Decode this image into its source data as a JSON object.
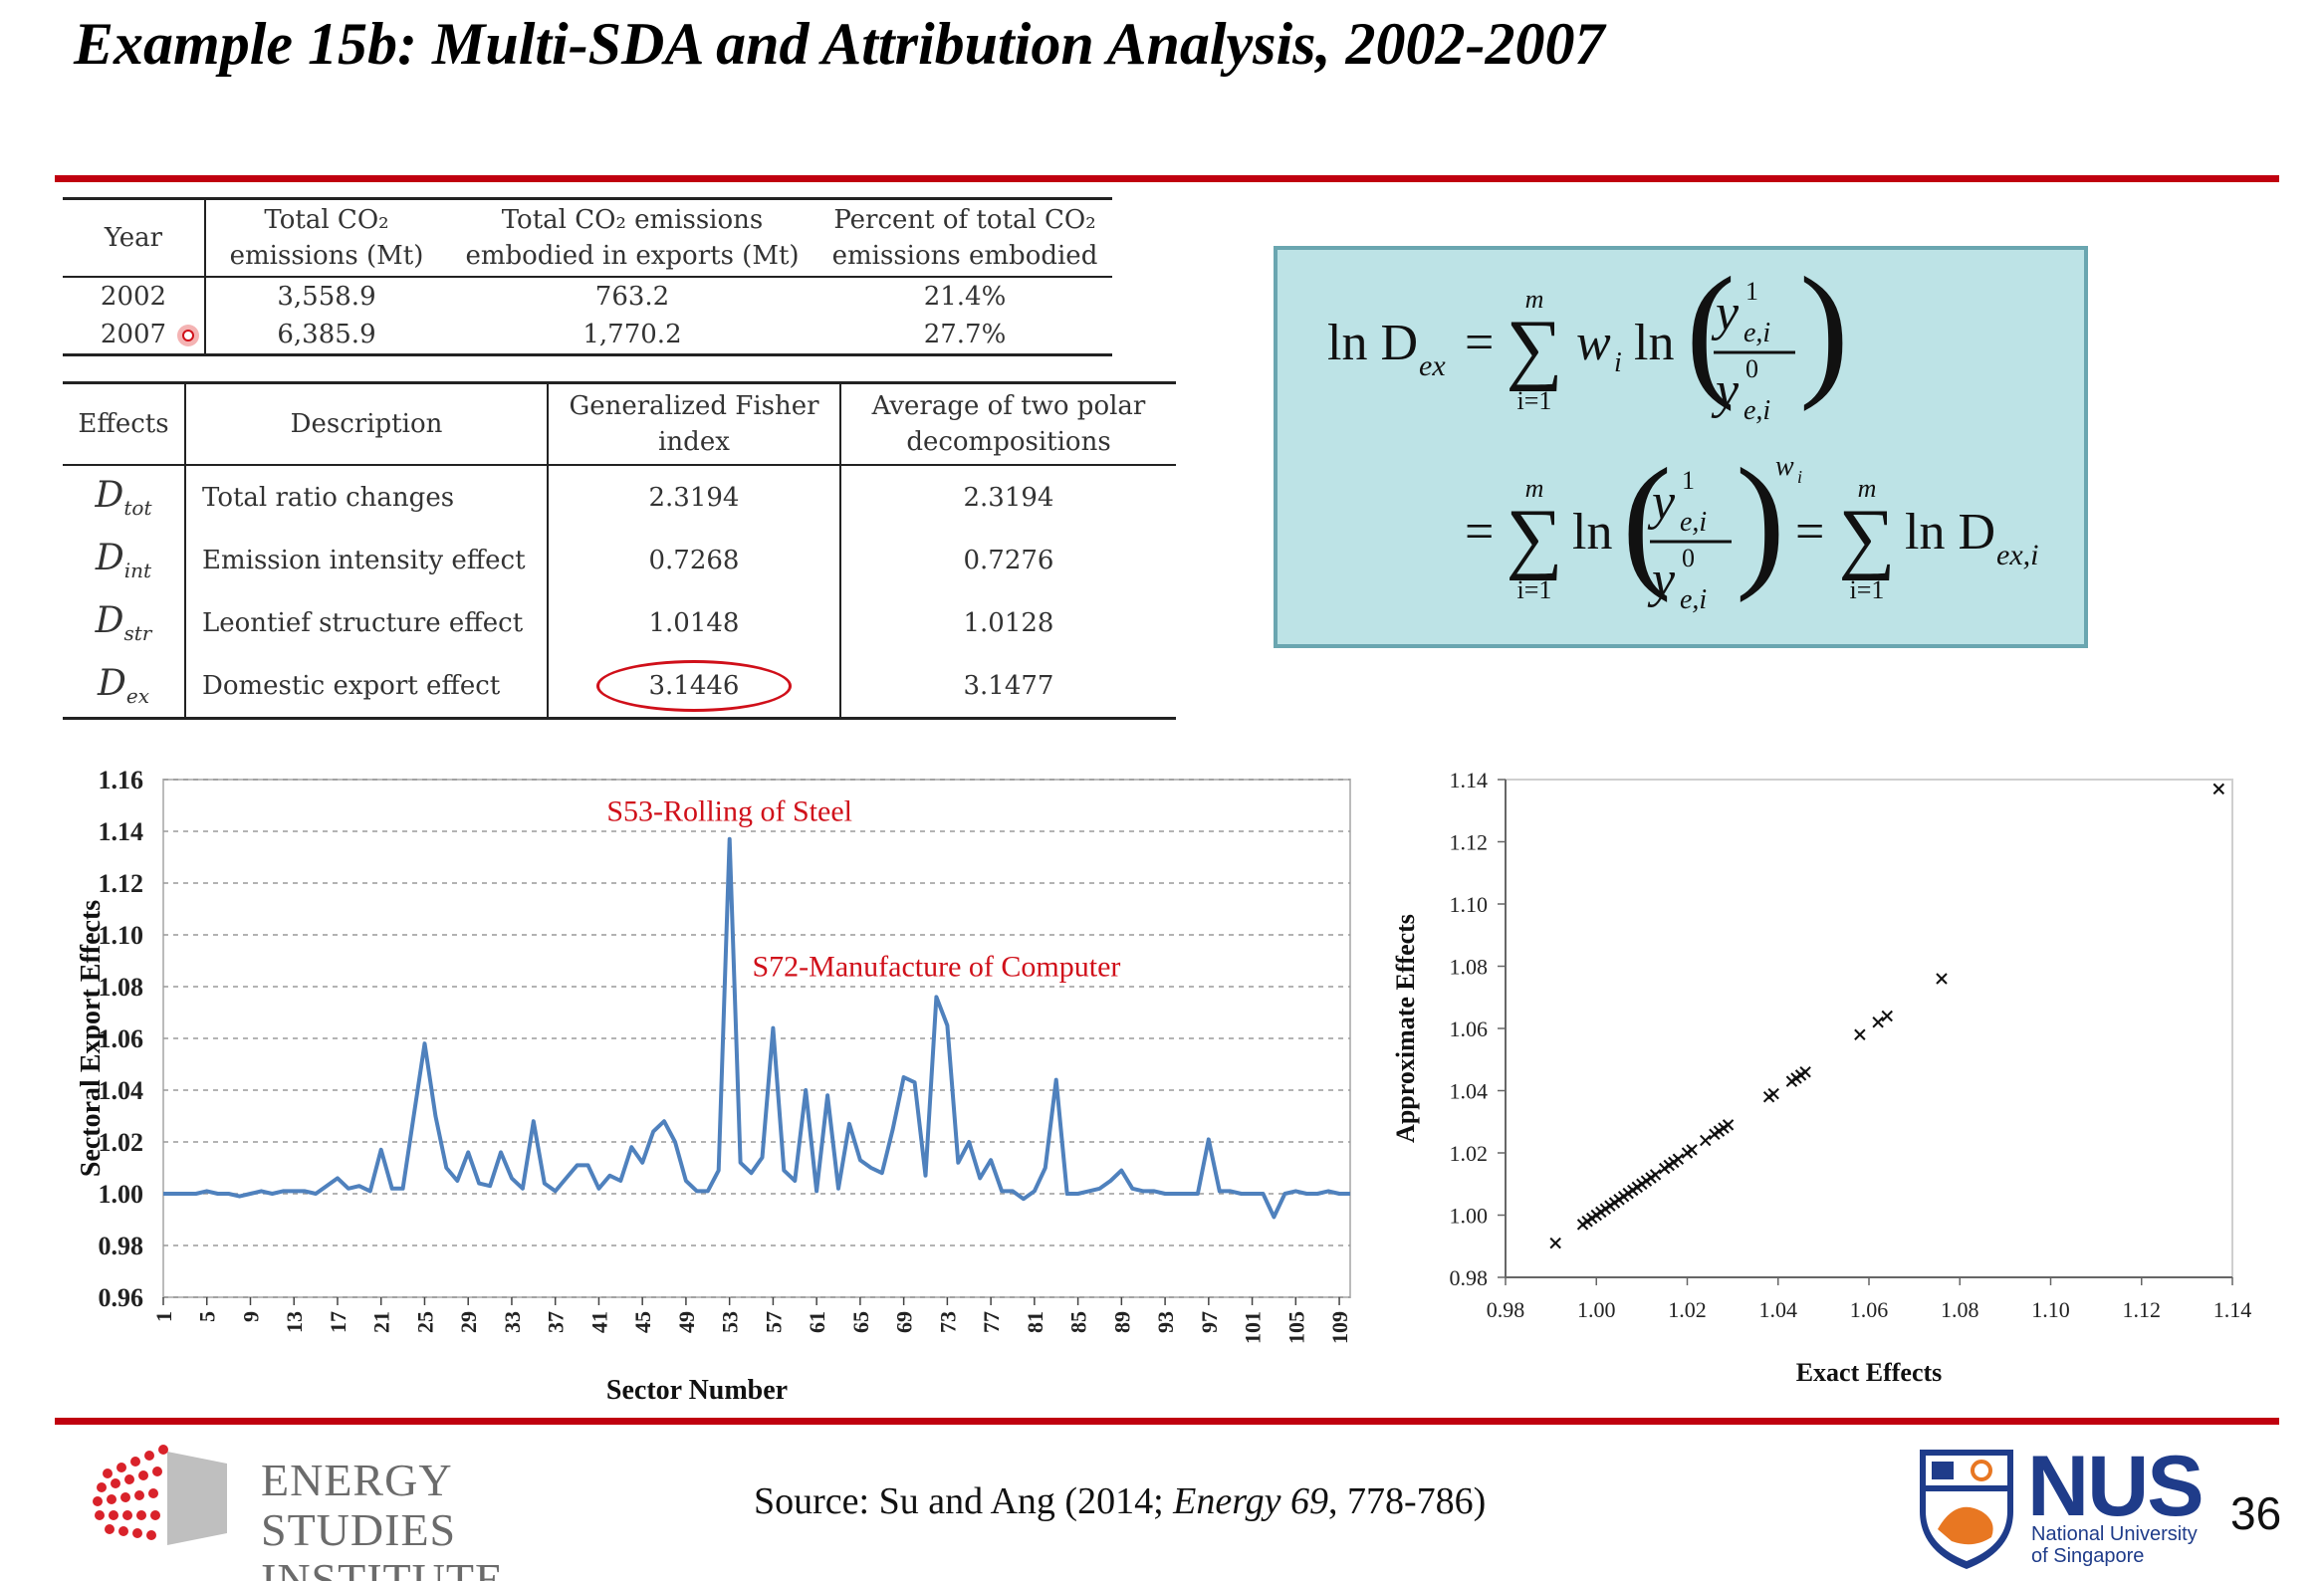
{
  "slide": {
    "title": "Example 15b: Multi-SDA and Attribution Analysis, 2002-2007",
    "source_prefix": "Source: Su and Ang (2014; ",
    "source_journal": "Energy 69",
    "source_suffix": ", 778-786)",
    "page_number": "36",
    "accent_color": "#c0000f"
  },
  "table1": {
    "headers": [
      "Year",
      "Total CO₂ emissions (Mt)",
      "Total CO₂ emissions embodied in exports (Mt)",
      "Percent of total CO₂ emissions embodied"
    ],
    "rows": [
      [
        "2002",
        "3,558.9",
        "763.2",
        "21.4%"
      ],
      [
        "2007",
        "6,385.9",
        "1,770.2",
        "27.7%"
      ]
    ]
  },
  "table2": {
    "headers": [
      "Effects",
      "Description",
      "Generalized Fisher index",
      "Average of two polar decompositions"
    ],
    "rows": [
      {
        "sym": "D",
        "sub": "tot",
        "desc": "Total ratio changes",
        "fisher": "2.3194",
        "avg": "2.3194"
      },
      {
        "sym": "D",
        "sub": "int",
        "desc": "Emission intensity effect",
        "fisher": "0.7268",
        "avg": "0.7276"
      },
      {
        "sym": "D",
        "sub": "str",
        "desc": "Leontief structure effect",
        "fisher": "1.0148",
        "avg": "1.0128"
      },
      {
        "sym": "D",
        "sub": "ex",
        "desc": "Domestic export effect",
        "fisher": "3.1446",
        "avg": "3.1477"
      }
    ]
  },
  "formula": {
    "lhs": "ln D",
    "lhs_sub": "ex",
    "sum_top": "m",
    "sum_bottom": "i=1",
    "weight": "w",
    "ln": "ln",
    "y": "y",
    "y_sub": "e,i",
    "sup1": "1",
    "sup0": "0",
    "rhs_sub": "ex,i"
  },
  "branding": {
    "esi_lines": [
      "ENERGY",
      "STUDIES",
      "INSTITUTE"
    ],
    "nus_word": "NUS",
    "nus_sub": [
      "National University",
      "of Singapore"
    ]
  },
  "chart_data": [
    {
      "type": "line",
      "title": "",
      "xlabel": "Sector Number",
      "ylabel": "Sectoral Export Effects",
      "ylim": [
        0.96,
        1.16
      ],
      "yticks": [
        "0.96",
        "0.98",
        "1.00",
        "1.02",
        "1.04",
        "1.06",
        "1.08",
        "1.10",
        "1.12",
        "1.14",
        "1.16"
      ],
      "xtick_labels": [
        "1",
        "5",
        "9",
        "13",
        "17",
        "21",
        "25",
        "29",
        "33",
        "37",
        "41",
        "45",
        "49",
        "53",
        "57",
        "61",
        "65",
        "69",
        "73",
        "77",
        "81",
        "85",
        "89",
        "93",
        "97",
        "101",
        "105",
        "109"
      ],
      "grid": true,
      "color": "#4f81bd",
      "annotations": [
        {
          "text": "S53-Rolling of Steel",
          "x": 53,
          "y": 1.144
        },
        {
          "text": "S72-Manufacture of Computer",
          "x": 72,
          "y": 1.084
        }
      ],
      "x": [
        1,
        2,
        3,
        4,
        5,
        6,
        7,
        8,
        9,
        10,
        11,
        12,
        13,
        14,
        15,
        16,
        17,
        18,
        19,
        20,
        21,
        22,
        23,
        24,
        25,
        26,
        27,
        28,
        29,
        30,
        31,
        32,
        33,
        34,
        35,
        36,
        37,
        38,
        39,
        40,
        41,
        42,
        43,
        44,
        45,
        46,
        47,
        48,
        49,
        50,
        51,
        52,
        53,
        54,
        55,
        56,
        57,
        58,
        59,
        60,
        61,
        62,
        63,
        64,
        65,
        66,
        67,
        68,
        69,
        70,
        71,
        72,
        73,
        74,
        75,
        76,
        77,
        78,
        79,
        80,
        81,
        82,
        83,
        84,
        85,
        86,
        87,
        88,
        89,
        90,
        91,
        92,
        93,
        94,
        95,
        96,
        97,
        98,
        99,
        100,
        101,
        102,
        103,
        104,
        105,
        106,
        107,
        108,
        109,
        110
      ],
      "y": [
        1.0,
        1.0,
        1.0,
        1.0,
        1.001,
        1.0,
        1.0,
        0.999,
        1.0,
        1.001,
        1.0,
        1.001,
        1.001,
        1.001,
        1.0,
        1.003,
        1.006,
        1.002,
        1.003,
        1.001,
        1.017,
        1.002,
        1.002,
        1.03,
        1.058,
        1.03,
        1.01,
        1.005,
        1.016,
        1.004,
        1.003,
        1.016,
        1.006,
        1.002,
        1.028,
        1.004,
        1.001,
        1.006,
        1.011,
        1.011,
        1.002,
        1.007,
        1.005,
        1.018,
        1.012,
        1.024,
        1.028,
        1.02,
        1.005,
        1.001,
        1.001,
        1.009,
        1.137,
        1.012,
        1.008,
        1.014,
        1.064,
        1.009,
        1.005,
        1.04,
        1.001,
        1.038,
        1.002,
        1.027,
        1.013,
        1.01,
        1.008,
        1.025,
        1.045,
        1.043,
        1.007,
        1.076,
        1.065,
        1.012,
        1.02,
        1.006,
        1.013,
        1.001,
        1.001,
        0.998,
        1.001,
        1.01,
        1.044,
        1.0,
        1.0,
        1.001,
        1.002,
        1.005,
        1.009,
        1.002,
        1.001,
        1.001,
        1.0,
        1.0,
        1.0,
        1.0,
        1.021,
        1.001,
        1.001,
        1.0,
        1.0,
        1.0,
        0.991,
        1.0,
        1.001,
        1.0,
        1.0,
        1.001,
        1.0,
        1.0
      ]
    },
    {
      "type": "scatter",
      "title": "",
      "xlabel": "Exact Effects",
      "ylabel": "Approximate Effects",
      "xlim": [
        0.98,
        1.14
      ],
      "ylim": [
        0.98,
        1.14
      ],
      "xticks": [
        "0.98",
        "1.00",
        "1.02",
        "1.04",
        "1.06",
        "1.08",
        "1.10",
        "1.12",
        "1.14"
      ],
      "yticks": [
        "0.98",
        "1.00",
        "1.02",
        "1.04",
        "1.06",
        "1.08",
        "1.10",
        "1.12",
        "1.14"
      ],
      "marker": "x",
      "points": [
        [
          0.991,
          0.991
        ],
        [
          0.997,
          0.997
        ],
        [
          0.998,
          0.998
        ],
        [
          0.999,
          0.999
        ],
        [
          1.0,
          1.0
        ],
        [
          1.001,
          1.001
        ],
        [
          1.002,
          1.002
        ],
        [
          1.003,
          1.003
        ],
        [
          1.004,
          1.004
        ],
        [
          1.005,
          1.005
        ],
        [
          1.006,
          1.006
        ],
        [
          1.007,
          1.007
        ],
        [
          1.008,
          1.008
        ],
        [
          1.009,
          1.009
        ],
        [
          1.01,
          1.01
        ],
        [
          1.011,
          1.011
        ],
        [
          1.012,
          1.012
        ],
        [
          1.013,
          1.013
        ],
        [
          1.015,
          1.015
        ],
        [
          1.016,
          1.016
        ],
        [
          1.017,
          1.017
        ],
        [
          1.018,
          1.018
        ],
        [
          1.02,
          1.02
        ],
        [
          1.021,
          1.021
        ],
        [
          1.024,
          1.024
        ],
        [
          1.026,
          1.026
        ],
        [
          1.027,
          1.027
        ],
        [
          1.028,
          1.028
        ],
        [
          1.029,
          1.029
        ],
        [
          1.038,
          1.038
        ],
        [
          1.039,
          1.039
        ],
        [
          1.043,
          1.043
        ],
        [
          1.044,
          1.044
        ],
        [
          1.045,
          1.045
        ],
        [
          1.046,
          1.046
        ],
        [
          1.058,
          1.058
        ],
        [
          1.062,
          1.062
        ],
        [
          1.064,
          1.064
        ],
        [
          1.076,
          1.076
        ],
        [
          1.137,
          1.137
        ]
      ]
    }
  ]
}
